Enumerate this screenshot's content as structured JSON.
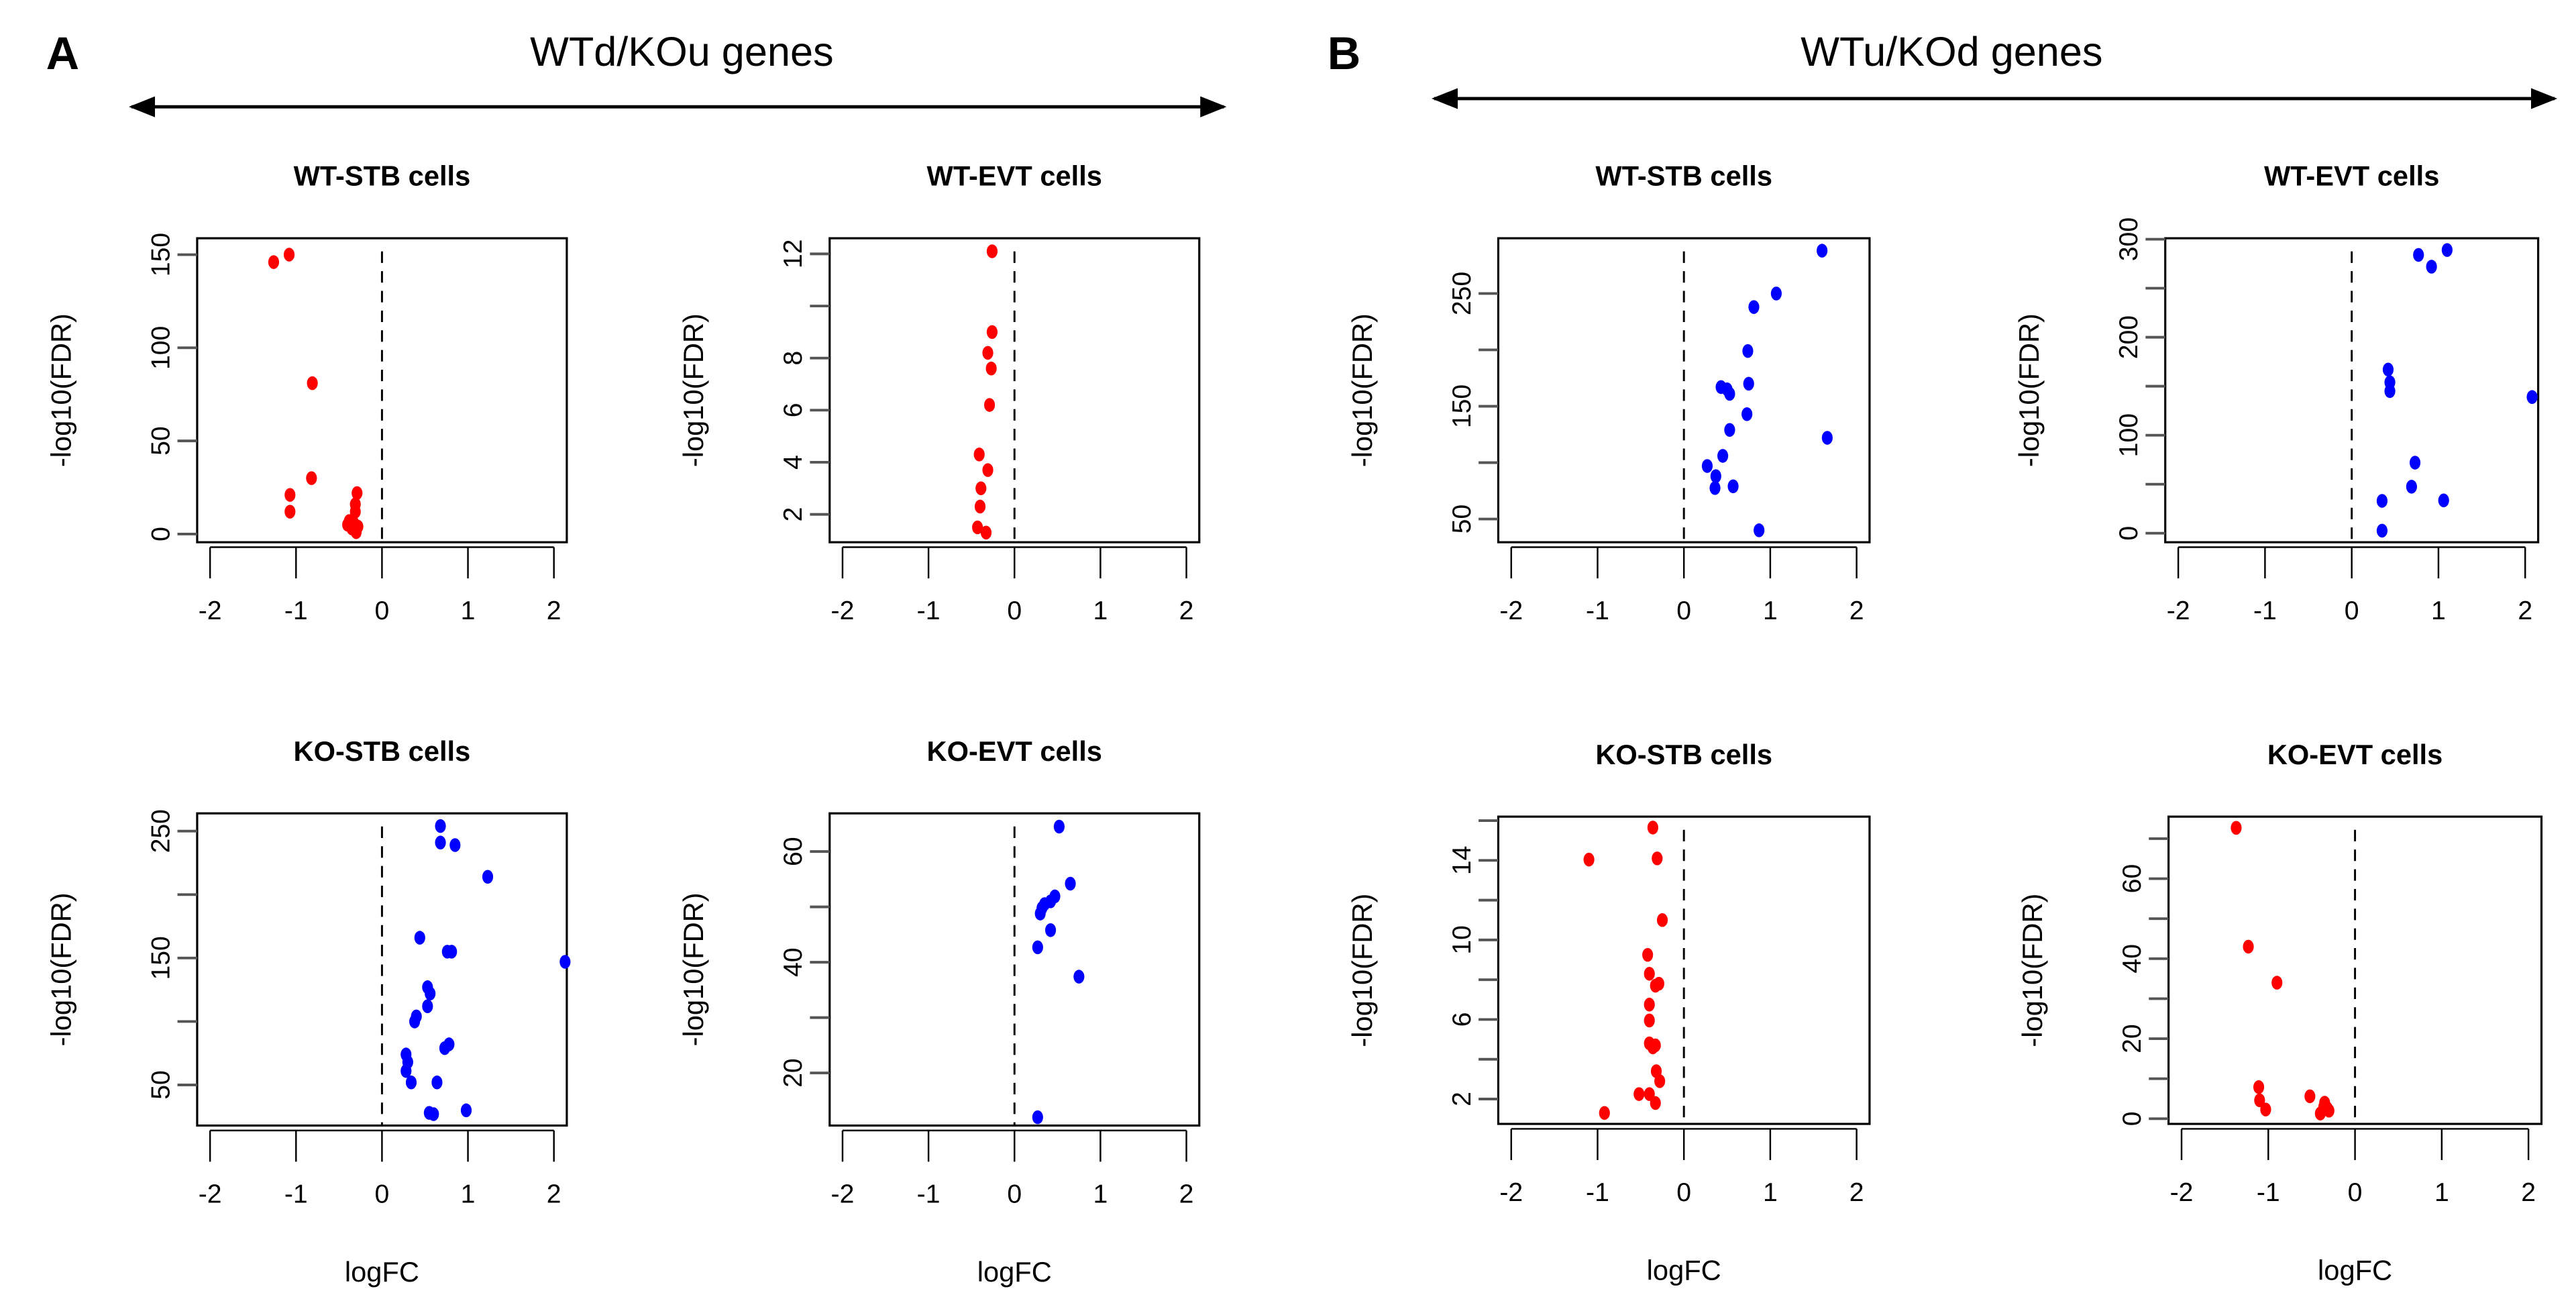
{
  "figure": {
    "panel_A_letter": "A",
    "panel_B_letter": "B",
    "group_A_title": "WTd/KOu genes",
    "group_B_title": "WTu/KOd genes",
    "colors": {
      "red": "#ff0000",
      "blue": "#0000ff"
    }
  },
  "chart_data": [
    {
      "type": "scatter",
      "group": "A",
      "title": "WT-STB cells",
      "xlabel": "",
      "ylabel": "-log10(FDR)",
      "color": "#ff0000",
      "xlim": [
        -2.15,
        2.15
      ],
      "ylim": [
        -4.4,
        158.8
      ],
      "xticks": [
        -2,
        -1,
        0,
        1,
        2
      ],
      "xtick_labels": [
        "-2",
        "-1",
        "0",
        "1",
        "2"
      ],
      "yticks": [
        0,
        50,
        100,
        150
      ],
      "ytick_labels": [
        "0",
        "50",
        "100",
        "150"
      ],
      "vline": 0,
      "points": [
        [
          -1.26,
          146
        ],
        [
          -1.08,
          150
        ],
        [
          -0.81,
          81
        ],
        [
          -0.82,
          30
        ],
        [
          -1.07,
          21
        ],
        [
          -1.07,
          12
        ],
        [
          -0.29,
          22
        ],
        [
          -0.31,
          16
        ],
        [
          -0.31,
          12
        ],
        [
          -0.4,
          5
        ],
        [
          -0.35,
          3
        ],
        [
          -0.3,
          2
        ],
        [
          -0.33,
          6
        ],
        [
          -0.28,
          4
        ],
        [
          -0.38,
          7
        ],
        [
          -0.3,
          1
        ]
      ]
    },
    {
      "type": "scatter",
      "group": "A",
      "title": "WT-EVT cells",
      "xlabel": "",
      "ylabel": "-log10(FDR)",
      "color": "#ff0000",
      "xlim": [
        -2.15,
        2.15
      ],
      "ylim": [
        0.93,
        12.6
      ],
      "xticks": [
        -2,
        -1,
        0,
        1,
        2
      ],
      "xtick_labels": [
        "-2",
        "-1",
        "0",
        "1",
        "2"
      ],
      "yticks": [
        2,
        4,
        6,
        8,
        10,
        12
      ],
      "ytick_labels": [
        "2",
        "4",
        "6",
        "8",
        "",
        "12"
      ],
      "vline": 0,
      "points": [
        [
          -0.26,
          12.1
        ],
        [
          -0.26,
          9.0
        ],
        [
          -0.31,
          8.2
        ],
        [
          -0.27,
          7.6
        ],
        [
          -0.29,
          6.2
        ],
        [
          -0.41,
          4.3
        ],
        [
          -0.31,
          3.7
        ],
        [
          -0.39,
          3.0
        ],
        [
          -0.4,
          2.3
        ],
        [
          -0.43,
          1.5
        ],
        [
          -0.33,
          1.3
        ]
      ]
    },
    {
      "type": "scatter",
      "group": "A",
      "title": "KO-STB cells",
      "xlabel": "logFC",
      "ylabel": "-log10(FDR)",
      "color": "#0000ff",
      "xlim": [
        -2.15,
        2.15
      ],
      "ylim": [
        18,
        264
      ],
      "xticks": [
        -2,
        -1,
        0,
        1,
        2
      ],
      "xtick_labels": [
        "-2",
        "-1",
        "0",
        "1",
        "2"
      ],
      "yticks": [
        50,
        100,
        150,
        200,
        250
      ],
      "ytick_labels": [
        "50",
        "",
        "150",
        "",
        "250"
      ],
      "vline": 0,
      "points": [
        [
          0.68,
          254
        ],
        [
          0.68,
          241
        ],
        [
          0.85,
          239
        ],
        [
          1.23,
          214
        ],
        [
          0.44,
          166
        ],
        [
          0.76,
          155
        ],
        [
          0.81,
          155
        ],
        [
          2.13,
          147
        ],
        [
          0.53,
          127
        ],
        [
          0.56,
          122
        ],
        [
          0.53,
          112
        ],
        [
          0.4,
          104
        ],
        [
          0.38,
          100
        ],
        [
          0.78,
          82
        ],
        [
          0.73,
          79
        ],
        [
          0.28,
          74
        ],
        [
          0.3,
          68
        ],
        [
          0.28,
          61
        ],
        [
          0.34,
          52
        ],
        [
          0.64,
          52
        ],
        [
          0.55,
          28
        ],
        [
          0.6,
          27
        ],
        [
          0.98,
          30
        ]
      ]
    },
    {
      "type": "scatter",
      "group": "A",
      "title": "KO-EVT cells",
      "xlabel": "logFC",
      "ylabel": "-log10(FDR)",
      "color": "#0000ff",
      "xlim": [
        -2.15,
        2.15
      ],
      "ylim": [
        10.5,
        66.9
      ],
      "xticks": [
        -2,
        -1,
        0,
        1,
        2
      ],
      "xtick_labels": [
        "-2",
        "-1",
        "0",
        "1",
        "2"
      ],
      "yticks": [
        20,
        30,
        40,
        50,
        60
      ],
      "ytick_labels": [
        "20",
        "",
        "40",
        "",
        "60"
      ],
      "vline": 0,
      "points": [
        [
          0.52,
          64.5
        ],
        [
          0.65,
          54.2
        ],
        [
          0.47,
          51.9
        ],
        [
          0.42,
          51
        ],
        [
          0.32,
          49.8
        ],
        [
          0.35,
          50.5
        ],
        [
          0.3,
          48.8
        ],
        [
          0.42,
          45.8
        ],
        [
          0.27,
          42.7
        ],
        [
          0.75,
          37.4
        ],
        [
          0.27,
          12
        ]
      ]
    },
    {
      "type": "scatter",
      "group": "B",
      "title": "WT-STB cells",
      "xlabel": "",
      "ylabel": "-log10(FDR)",
      "color": "#0000ff",
      "xlim": [
        -2.15,
        2.15
      ],
      "ylim": [
        29.4,
        299
      ],
      "xticks": [
        -2,
        -1,
        0,
        1,
        2
      ],
      "xtick_labels": [
        "-2",
        "-1",
        "0",
        "1",
        "2"
      ],
      "yticks": [
        50,
        100,
        150,
        200,
        250
      ],
      "ytick_labels": [
        "50",
        "",
        "150",
        "",
        "250"
      ],
      "vline": 0,
      "points": [
        [
          1.6,
          288
        ],
        [
          1.07,
          250
        ],
        [
          0.81,
          238
        ],
        [
          0.74,
          199
        ],
        [
          0.75,
          170
        ],
        [
          0.43,
          167
        ],
        [
          0.5,
          165
        ],
        [
          0.53,
          161
        ],
        [
          0.73,
          143
        ],
        [
          0.53,
          129
        ],
        [
          1.66,
          122
        ],
        [
          0.45,
          106
        ],
        [
          0.27,
          97
        ],
        [
          0.37,
          88
        ],
        [
          0.36,
          77.5
        ],
        [
          0.57,
          79
        ],
        [
          0.87,
          40
        ]
      ]
    },
    {
      "type": "scatter",
      "group": "B",
      "title": "WT-EVT cells",
      "xlabel": "",
      "ylabel": "-log10(FDR)",
      "color": "#0000ff",
      "xlim": [
        -2.15,
        2.15
      ],
      "ylim": [
        -9.2,
        301
      ],
      "xticks": [
        -2,
        -1,
        0,
        1,
        2
      ],
      "xtick_labels": [
        "-2",
        "-1",
        "0",
        "1",
        "2"
      ],
      "yticks": [
        0,
        50,
        100,
        150,
        200,
        250,
        300
      ],
      "ytick_labels": [
        "0",
        "",
        "100",
        "",
        "200",
        "",
        "300"
      ],
      "vline": 0,
      "points": [
        [
          1.1,
          289
        ],
        [
          0.77,
          284
        ],
        [
          0.92,
          272
        ],
        [
          0.42,
          167
        ],
        [
          0.44,
          154
        ],
        [
          0.44,
          145
        ],
        [
          2.08,
          139
        ],
        [
          0.73,
          72
        ],
        [
          0.69,
          47.5
        ],
        [
          0.35,
          33
        ],
        [
          1.06,
          33.5
        ],
        [
          0.35,
          2.6
        ]
      ]
    },
    {
      "type": "scatter",
      "group": "B",
      "title": "KO-STB cells",
      "xlabel": "logFC",
      "ylabel": "-log10(FDR)",
      "color": "#ff0000",
      "xlim": [
        -2.15,
        2.15
      ],
      "ylim": [
        0.75,
        16.2
      ],
      "xticks": [
        -2,
        -1,
        0,
        1,
        2
      ],
      "xtick_labels": [
        "-2",
        "-1",
        "0",
        "1",
        "2"
      ],
      "yticks": [
        2,
        4,
        6,
        8,
        10,
        12,
        14,
        16
      ],
      "ytick_labels": [
        "2",
        "",
        "6",
        "",
        "10",
        "",
        "14",
        ""
      ],
      "vline": 0,
      "points": [
        [
          -0.36,
          15.65
        ],
        [
          -1.1,
          14.04
        ],
        [
          -0.31,
          14.1
        ],
        [
          -0.25,
          11.0
        ],
        [
          -0.42,
          9.25
        ],
        [
          -0.4,
          8.3
        ],
        [
          -0.29,
          7.8
        ],
        [
          -0.33,
          7.7
        ],
        [
          -0.4,
          6.75
        ],
        [
          -0.4,
          5.95
        ],
        [
          -0.4,
          4.8
        ],
        [
          -0.36,
          4.6
        ],
        [
          -0.33,
          4.7
        ],
        [
          -0.32,
          3.4
        ],
        [
          -0.28,
          2.9
        ],
        [
          -0.52,
          2.25
        ],
        [
          -0.4,
          2.25
        ],
        [
          -0.33,
          1.8
        ],
        [
          -0.92,
          1.3
        ]
      ]
    },
    {
      "type": "scatter",
      "group": "B",
      "title": "KO-EVT cells",
      "xlabel": "logFC",
      "ylabel": "-log10(FDR)",
      "color": "#ff0000",
      "xlim": [
        -2.15,
        2.15
      ],
      "ylim": [
        -1.3,
        75.5
      ],
      "xticks": [
        -2,
        -1,
        0,
        1,
        2
      ],
      "xtick_labels": [
        "-2",
        "-1",
        "0",
        "1",
        "2"
      ],
      "yticks": [
        0,
        10,
        20,
        30,
        40,
        50,
        60,
        70
      ],
      "ytick_labels": [
        "0",
        "",
        "20",
        "",
        "40",
        "",
        "60",
        ""
      ],
      "vline": 0,
      "points": [
        [
          -1.37,
          72.7
        ],
        [
          -1.23,
          43
        ],
        [
          -0.9,
          34
        ],
        [
          -1.11,
          7.9
        ],
        [
          -1.1,
          4.6
        ],
        [
          -1.03,
          2.3
        ],
        [
          -0.52,
          5.6
        ],
        [
          -0.35,
          4
        ],
        [
          -0.32,
          2.6
        ],
        [
          -0.4,
          1.3
        ],
        [
          -0.3,
          2
        ],
        [
          -0.36,
          3
        ]
      ]
    }
  ]
}
